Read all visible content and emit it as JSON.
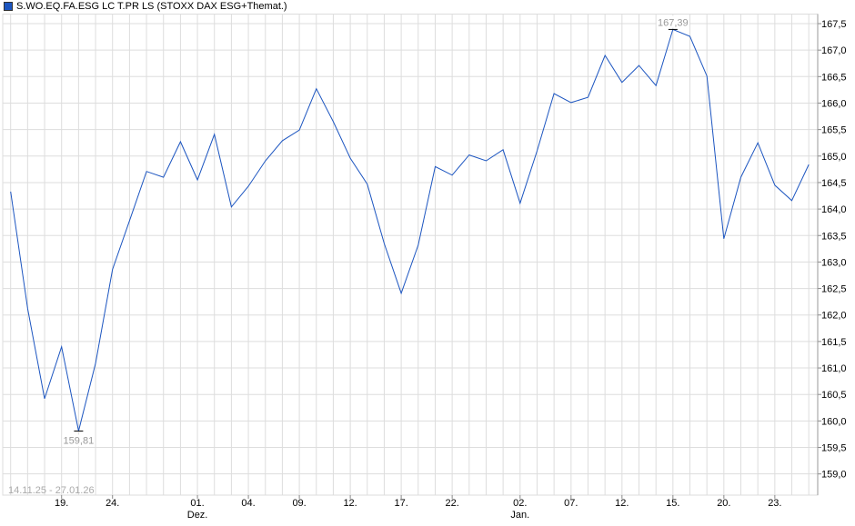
{
  "chart_data": {
    "type": "line",
    "legend": {
      "placement": "top-left"
    },
    "series": [
      {
        "name": "S.WO.EQ.FA.ESG LC T.PR LS (STOXX DAX ESG+Themat.)",
        "color": "#1c55c0",
        "values": [
          164.33,
          162.12,
          160.42,
          161.4,
          159.81,
          161.09,
          162.86,
          163.78,
          164.71,
          164.6,
          165.27,
          164.55,
          165.41,
          164.04,
          164.43,
          164.91,
          165.29,
          165.49,
          166.27,
          165.65,
          164.96,
          164.47,
          163.35,
          162.41,
          163.32,
          164.8,
          164.64,
          165.02,
          164.91,
          165.12,
          164.11,
          165.1,
          166.18,
          166.01,
          166.11,
          166.9,
          166.39,
          166.71,
          166.33,
          167.39,
          167.26,
          166.51,
          163.44,
          164.6,
          165.25,
          164.45,
          164.16,
          164.84
        ]
      }
    ],
    "x_ticks": [
      {
        "index": 3,
        "label": "19."
      },
      {
        "index": 6,
        "label": "24."
      },
      {
        "index": 11,
        "label": "01.",
        "month": "Dez."
      },
      {
        "index": 14,
        "label": "04."
      },
      {
        "index": 17,
        "label": "09."
      },
      {
        "index": 20,
        "label": "12."
      },
      {
        "index": 23,
        "label": "17."
      },
      {
        "index": 26,
        "label": "22."
      },
      {
        "index": 30,
        "label": "02.",
        "month": "Jan."
      },
      {
        "index": 33,
        "label": "07."
      },
      {
        "index": 36,
        "label": "12."
      },
      {
        "index": 39,
        "label": "15."
      },
      {
        "index": 42,
        "label": "20."
      },
      {
        "index": 45,
        "label": "23."
      }
    ],
    "y_ticks": [
      "167,5",
      "167,0",
      "166,5",
      "166,0",
      "165,5",
      "165,0",
      "164,5",
      "164,0",
      "163,5",
      "163,0",
      "162,5",
      "162,0",
      "161,5",
      "161,0",
      "160,5",
      "160,0",
      "159,5",
      "159,0"
    ],
    "y_tick_values": [
      167.5,
      167.0,
      166.5,
      166.0,
      165.5,
      165.0,
      164.5,
      164.0,
      163.5,
      163.0,
      162.5,
      162.0,
      161.5,
      161.0,
      160.5,
      160.0,
      159.5,
      159.0
    ],
    "ylim": [
      158.6,
      167.68
    ],
    "grid": true,
    "max_annotation": {
      "index": 39,
      "label": "167,39"
    },
    "min_annotation": {
      "index": 4,
      "label": "159,81"
    },
    "date_range": "14.11.25 - 27.01.26"
  }
}
